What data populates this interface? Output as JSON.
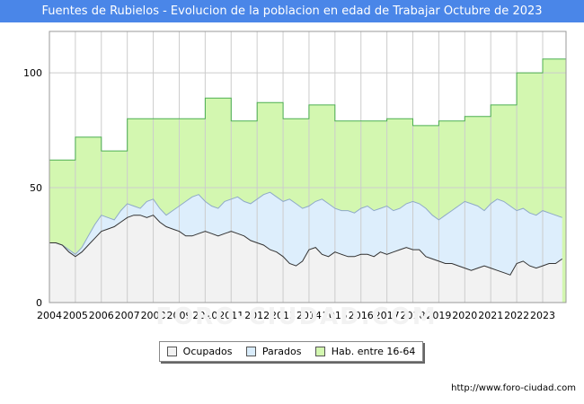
{
  "title": "Fuentes de Rubielos - Evolucion de la poblacion en edad de Trabajar Octubre de 2023",
  "footer": {
    "url": "http://www.foro-ciudad.com",
    "watermark": "FORO-CIUDAD.COM"
  },
  "legend": [
    {
      "label": "Ocupados",
      "color": "#f2f2f2"
    },
    {
      "label": "Parados",
      "color": "#d9ecfb"
    },
    {
      "label": "Hab. entre 16-64",
      "color": "#d3f7b0"
    }
  ],
  "chart_data": {
    "type": "area",
    "title": "Fuentes de Rubielos - Evolucion de la poblacion en edad de Trabajar Octubre de 2023",
    "xlabel": "",
    "ylabel": "",
    "xlim": [
      2004,
      2023.9
    ],
    "ylim": [
      0,
      118
    ],
    "yticks": [
      0,
      50,
      100
    ],
    "xticks": [
      "2004",
      "2005",
      "2006",
      "2007",
      "2008",
      "2009",
      "2010",
      "2011",
      "2012",
      "2013",
      "2014",
      "2015",
      "2016",
      "2017",
      "2018",
      "2019",
      "2020",
      "2021",
      "2022",
      "2023"
    ],
    "grid": true,
    "legend_position": "bottom-center",
    "colors": {
      "hab_fill": "#d3f7b0",
      "hab_line": "#4caf50",
      "parados_fill": "#ddeefc",
      "parados_line": "#8fa9c8",
      "ocupados_fill": "#f2f2f2",
      "ocupados_line": "#333333",
      "grid": "#cccccc"
    },
    "series": [
      {
        "name": "Hab. entre 16-64",
        "kind": "step",
        "x": [
          2004,
          2005,
          2006,
          2007,
          2009,
          2010,
          2011,
          2012,
          2013,
          2014,
          2015,
          2017,
          2018,
          2019,
          2020,
          2021,
          2022,
          2023
        ],
        "values": [
          62,
          72,
          66,
          80,
          80,
          89,
          79,
          87,
          80,
          86,
          79,
          80,
          77,
          79,
          81,
          86,
          100,
          106
        ]
      },
      {
        "name": "Parados",
        "x": [
          2004.0,
          2004.25,
          2004.5,
          2004.75,
          2005.0,
          2005.25,
          2005.5,
          2005.75,
          2006.0,
          2006.25,
          2006.5,
          2006.75,
          2007.0,
          2007.25,
          2007.5,
          2007.75,
          2008.0,
          2008.25,
          2008.5,
          2008.75,
          2009.0,
          2009.25,
          2009.5,
          2009.75,
          2010.0,
          2010.25,
          2010.5,
          2010.75,
          2011.0,
          2011.25,
          2011.5,
          2011.75,
          2012.0,
          2012.25,
          2012.5,
          2012.75,
          2013.0,
          2013.25,
          2013.5,
          2013.75,
          2014.0,
          2014.25,
          2014.5,
          2014.75,
          2015.0,
          2015.25,
          2015.5,
          2015.75,
          2016.0,
          2016.25,
          2016.5,
          2016.75,
          2017.0,
          2017.25,
          2017.5,
          2017.75,
          2018.0,
          2018.25,
          2018.5,
          2018.75,
          2019.0,
          2019.25,
          2019.5,
          2019.75,
          2020.0,
          2020.25,
          2020.5,
          2020.75,
          2021.0,
          2021.25,
          2021.5,
          2021.75,
          2022.0,
          2022.25,
          2022.5,
          2022.75,
          2023.0,
          2023.25,
          2023.5,
          2023.75
        ],
        "values": [
          26,
          26,
          25,
          23,
          21,
          24,
          29,
          34,
          38,
          37,
          36,
          40,
          43,
          42,
          41,
          44,
          45,
          41,
          38,
          40,
          42,
          44,
          46,
          47,
          44,
          42,
          41,
          44,
          45,
          46,
          44,
          43,
          45,
          47,
          48,
          46,
          44,
          45,
          43,
          41,
          42,
          44,
          45,
          43,
          41,
          40,
          40,
          39,
          41,
          42,
          40,
          41,
          42,
          40,
          41,
          43,
          44,
          43,
          41,
          38,
          36,
          38,
          40,
          42,
          44,
          43,
          42,
          40,
          43,
          45,
          44,
          42,
          40,
          41,
          39,
          38,
          40,
          39,
          38,
          37
        ]
      },
      {
        "name": "Ocupados",
        "x": [
          2004.0,
          2004.25,
          2004.5,
          2004.75,
          2005.0,
          2005.25,
          2005.5,
          2005.75,
          2006.0,
          2006.25,
          2006.5,
          2006.75,
          2007.0,
          2007.25,
          2007.5,
          2007.75,
          2008.0,
          2008.25,
          2008.5,
          2008.75,
          2009.0,
          2009.25,
          2009.5,
          2009.75,
          2010.0,
          2010.25,
          2010.5,
          2010.75,
          2011.0,
          2011.25,
          2011.5,
          2011.75,
          2012.0,
          2012.25,
          2012.5,
          2012.75,
          2013.0,
          2013.25,
          2013.5,
          2013.75,
          2014.0,
          2014.25,
          2014.5,
          2014.75,
          2015.0,
          2015.25,
          2015.5,
          2015.75,
          2016.0,
          2016.25,
          2016.5,
          2016.75,
          2017.0,
          2017.25,
          2017.5,
          2017.75,
          2018.0,
          2018.25,
          2018.5,
          2018.75,
          2019.0,
          2019.25,
          2019.5,
          2019.75,
          2020.0,
          2020.25,
          2020.5,
          2020.75,
          2021.0,
          2021.25,
          2021.5,
          2021.75,
          2022.0,
          2022.25,
          2022.5,
          2022.75,
          2023.0,
          2023.25,
          2023.5,
          2023.75
        ],
        "values": [
          26,
          26,
          25,
          22,
          20,
          22,
          25,
          28,
          31,
          32,
          33,
          35,
          37,
          38,
          38,
          37,
          38,
          35,
          33,
          32,
          31,
          29,
          29,
          30,
          31,
          30,
          29,
          30,
          31,
          30,
          29,
          27,
          26,
          25,
          23,
          22,
          20,
          17,
          16,
          18,
          23,
          24,
          21,
          20,
          22,
          21,
          20,
          20,
          21,
          21,
          20,
          22,
          21,
          22,
          23,
          24,
          23,
          23,
          20,
          19,
          18,
          17,
          17,
          16,
          15,
          14,
          15,
          16,
          15,
          14,
          13,
          12,
          17,
          18,
          16,
          15,
          16,
          17,
          17,
          19
        ]
      }
    ]
  }
}
